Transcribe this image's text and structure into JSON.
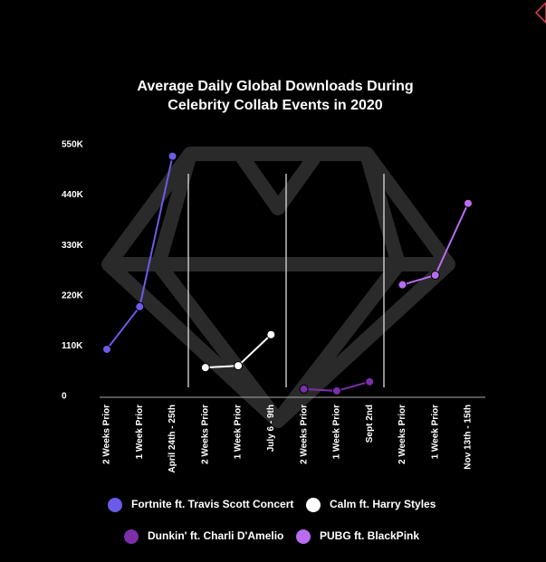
{
  "chart_data": {
    "type": "line",
    "title": [
      "Average Daily Global Downloads During",
      "Celebrity Collab Events in 2020"
    ],
    "categories": [
      "2 Weeks Prior",
      "1 Week Prior",
      "April 24th - 25th",
      "2 Weeks Prior",
      "1 Week Prior",
      "July 6 - 9th",
      "2 Weeks Prior",
      "1 Week Prior",
      "Sept 2nd",
      "2 Weeks Prior",
      "1 Week Prior",
      "Nov 13th - 15th"
    ],
    "series": [
      {
        "name": "Fortnite ft. Travis Scott Concert",
        "color": "#6a5ce8",
        "values": [
          103000,
          196000,
          525000,
          null,
          null,
          null,
          null,
          null,
          null,
          null,
          null,
          null
        ]
      },
      {
        "name": "Calm ft. Harry Styles",
        "color": "#ffffff",
        "values": [
          null,
          null,
          null,
          63000,
          67000,
          135000,
          null,
          null,
          null,
          null,
          null,
          null
        ]
      },
      {
        "name": "Dunkin' ft. Charli D'Amelio",
        "color": "#7b2fa8",
        "values": [
          null,
          null,
          null,
          null,
          null,
          null,
          16000,
          12000,
          32000,
          null,
          null,
          null
        ]
      },
      {
        "name": "PUBG ft. BlackPink",
        "color": "#b86cf0",
        "values": [
          null,
          null,
          null,
          null,
          null,
          null,
          null,
          null,
          null,
          244000,
          265000,
          422000
        ]
      }
    ],
    "ylim": [
      0,
      550000
    ],
    "yticks": [
      0,
      {
        "value": 110000,
        "label": "110K"
      },
      {
        "value": 220000,
        "label": "220K"
      },
      {
        "value": 330000,
        "label": "330K"
      },
      {
        "value": 440000,
        "label": "440K"
      },
      {
        "value": 550000,
        "label": "550K"
      }
    ],
    "grid": false
  }
}
